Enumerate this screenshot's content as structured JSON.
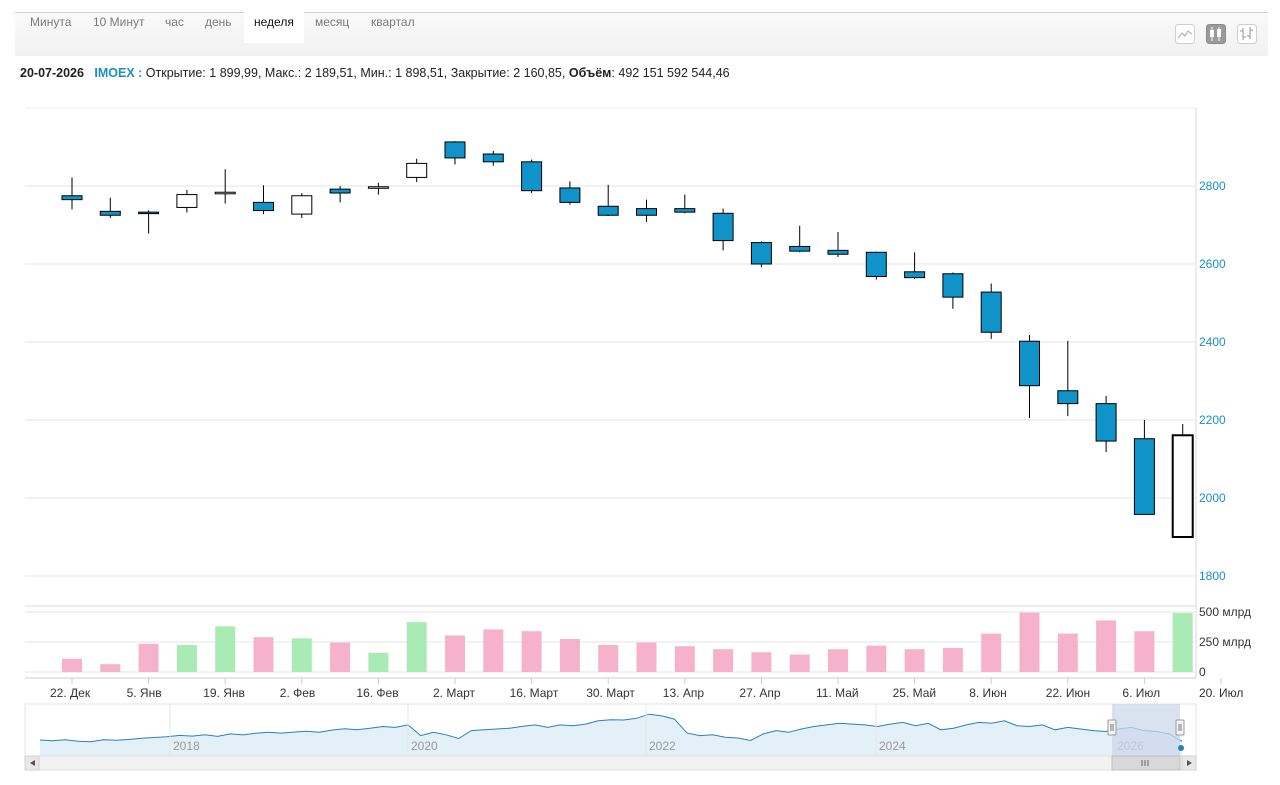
{
  "tabs": [
    {
      "label": "Минута",
      "active": false
    },
    {
      "label": "10 Минут",
      "active": false
    },
    {
      "label": "час",
      "active": false
    },
    {
      "label": "день",
      "active": false
    },
    {
      "label": "неделя",
      "active": true
    },
    {
      "label": "месяц",
      "active": false
    },
    {
      "label": "квартал",
      "active": false
    }
  ],
  "tools": [
    {
      "icon": "line-chart-icon",
      "active": false
    },
    {
      "icon": "candlestick-icon",
      "active": true
    },
    {
      "icon": "ohlc-bars-icon",
      "active": false
    }
  ],
  "info": {
    "date": "20-07-2026",
    "ticker": "IMOEX",
    "open_label": "Открытие:",
    "open": "1 899,99",
    "high_label": "Макс.:",
    "high": "2 189,51",
    "low_label": "Мин.:",
    "low": "1 898,51",
    "close_label": "Закрытие:",
    "close": "2 160,85",
    "volume_label": "Объём",
    "volume": "492 151 592 544,46"
  },
  "colors": {
    "down_candle": "#0f93c8",
    "up_candle": "#ffffff",
    "volume_up": "#a8ebb4",
    "volume_down": "#f6b2ca",
    "axis_text": "#1a8fc4",
    "navigator_line": "#2a80b9",
    "navigator_fill": "#e4f0f8",
    "navigator_selection": "#ccd8ec"
  },
  "chart_data": {
    "type": "candlestick",
    "interval": "неделя",
    "price_axis": {
      "ticks": [
        1800,
        2000,
        2200,
        2400,
        2600,
        2800
      ],
      "range": [
        1800,
        3000
      ],
      "position": "right"
    },
    "volume_axis": {
      "ticks": [
        "0",
        "250 млрд",
        "500 млрд"
      ],
      "range": [
        0,
        550
      ]
    },
    "x_tick_labels": [
      "22. Дек",
      "5. Янв",
      "19. Янв",
      "2. Фев",
      "16. Фев",
      "2. Март",
      "16. Март",
      "30. Март",
      "13. Апр",
      "27. Апр",
      "11. Май",
      "25. Май",
      "8. Июн",
      "22. Июн",
      "6. Июл",
      "20. Июл"
    ],
    "candles": [
      {
        "open": 2775,
        "high": 2822,
        "low": 2740,
        "close": 2765,
        "volume": 110
      },
      {
        "open": 2735,
        "high": 2770,
        "low": 2718,
        "close": 2725,
        "volume": 65
      },
      {
        "open": 2733,
        "high": 2738,
        "low": 2678,
        "close": 2731,
        "volume": 235
      },
      {
        "open": 2745,
        "high": 2790,
        "low": 2732,
        "close": 2778,
        "volume": 225
      },
      {
        "open": 2780,
        "high": 2843,
        "low": 2755,
        "close": 2784,
        "volume": 380
      },
      {
        "open": 2758,
        "high": 2802,
        "low": 2728,
        "close": 2737,
        "volume": 290
      },
      {
        "open": 2728,
        "high": 2782,
        "low": 2718,
        "close": 2775,
        "volume": 280
      },
      {
        "open": 2792,
        "high": 2800,
        "low": 2758,
        "close": 2782,
        "volume": 245
      },
      {
        "open": 2795,
        "high": 2808,
        "low": 2778,
        "close": 2798,
        "volume": 160
      },
      {
        "open": 2822,
        "high": 2870,
        "low": 2810,
        "close": 2858,
        "volume": 415
      },
      {
        "open": 2913,
        "high": 2915,
        "low": 2855,
        "close": 2872,
        "volume": 305
      },
      {
        "open": 2882,
        "high": 2890,
        "low": 2852,
        "close": 2862,
        "volume": 355
      },
      {
        "open": 2862,
        "high": 2868,
        "low": 2782,
        "close": 2788,
        "volume": 340
      },
      {
        "open": 2795,
        "high": 2812,
        "low": 2752,
        "close": 2758,
        "volume": 275
      },
      {
        "open": 2748,
        "high": 2803,
        "low": 2723,
        "close": 2725,
        "volume": 225
      },
      {
        "open": 2742,
        "high": 2765,
        "low": 2708,
        "close": 2725,
        "volume": 245
      },
      {
        "open": 2742,
        "high": 2778,
        "low": 2730,
        "close": 2733,
        "volume": 215
      },
      {
        "open": 2730,
        "high": 2742,
        "low": 2635,
        "close": 2660,
        "volume": 190
      },
      {
        "open": 2655,
        "high": 2658,
        "low": 2592,
        "close": 2600,
        "volume": 165
      },
      {
        "open": 2645,
        "high": 2698,
        "low": 2630,
        "close": 2633,
        "volume": 145
      },
      {
        "open": 2635,
        "high": 2682,
        "low": 2618,
        "close": 2625,
        "volume": 190
      },
      {
        "open": 2630,
        "high": 2632,
        "low": 2560,
        "close": 2568,
        "volume": 220
      },
      {
        "open": 2580,
        "high": 2630,
        "low": 2562,
        "close": 2565,
        "volume": 190
      },
      {
        "open": 2575,
        "high": 2578,
        "low": 2485,
        "close": 2515,
        "volume": 200
      },
      {
        "open": 2528,
        "high": 2550,
        "low": 2408,
        "close": 2425,
        "volume": 320
      },
      {
        "open": 2402,
        "high": 2418,
        "low": 2205,
        "close": 2288,
        "volume": 495
      },
      {
        "open": 2275,
        "high": 2403,
        "low": 2210,
        "close": 2242,
        "volume": 320
      },
      {
        "open": 2242,
        "high": 2262,
        "low": 2118,
        "close": 2146,
        "volume": 430
      },
      {
        "open": 2152,
        "high": 2200,
        "low": 1958,
        "close": 1958,
        "volume": 340
      },
      {
        "open": 1899.99,
        "high": 2189.51,
        "low": 1898.51,
        "close": 2160.85,
        "volume": 492
      }
    ],
    "navigator": {
      "year_labels": [
        "2018",
        "2020",
        "2022",
        "2024",
        "2026"
      ],
      "series": [
        2230,
        2180,
        2240,
        2150,
        2120,
        2250,
        2210,
        2260,
        2340,
        2380,
        2430,
        2510,
        2470,
        2550,
        2450,
        2600,
        2540,
        2640,
        2700,
        2650,
        2710,
        2760,
        2700,
        2830,
        2910,
        2860,
        2950,
        3050,
        3000,
        3150,
        2500,
        2700,
        2550,
        2320,
        2800,
        2850,
        2900,
        2950,
        3060,
        3150,
        3000,
        3150,
        3100,
        3200,
        3400,
        3460,
        3450,
        3550,
        3800,
        3700,
        3500,
        2650,
        2500,
        2550,
        2400,
        2350,
        2200,
        2600,
        2800,
        2700,
        2900,
        3050,
        3150,
        3250,
        3200,
        3150,
        3050,
        3200,
        3300,
        3100,
        3250,
        2850,
        2950,
        3150,
        3300,
        3250,
        3400,
        3100,
        3050,
        3150,
        2850,
        3000,
        2900,
        2800,
        2750,
        2900,
        3000,
        2800,
        2750,
        2600,
        2150
      ]
    }
  }
}
